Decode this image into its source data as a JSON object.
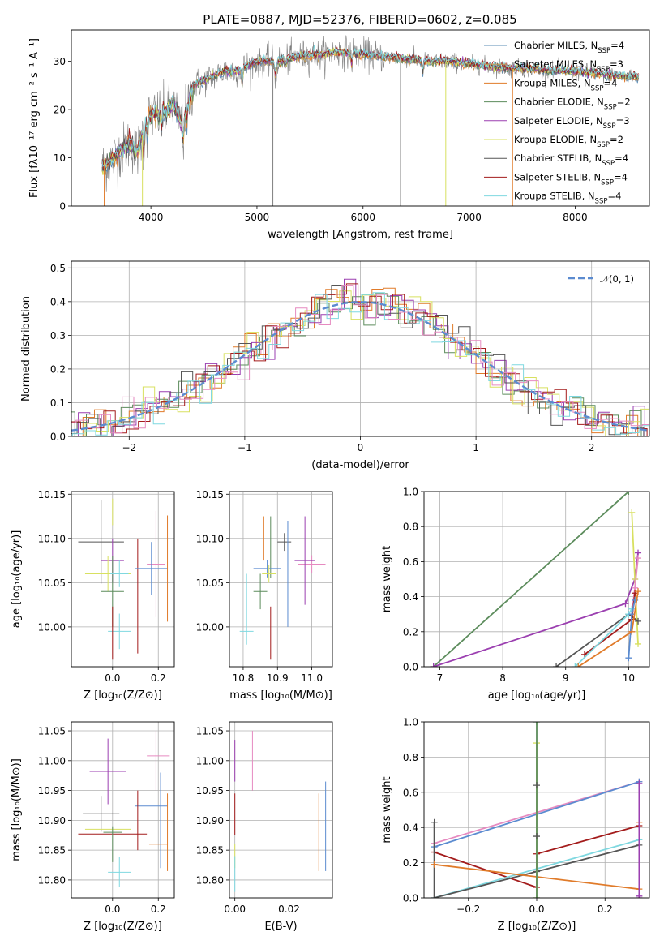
{
  "figure": {
    "title": "PLATE=0887, MJD=52376, FIBERID=0602, z=0.085"
  },
  "chart_data": [
    {
      "id": "spectrum",
      "type": "line",
      "xlabel": "wavelength [Angstrom, rest frame]",
      "ylabel": "Flux [fλ10⁻¹⁷ erg cm⁻² s⁻¹ A⁻¹]",
      "xlim": [
        3250,
        8700
      ],
      "ylim": [
        0,
        36.5
      ],
      "xticks": [
        4000,
        5000,
        6000,
        7000,
        8000
      ],
      "yticks": [
        0,
        10,
        20,
        30
      ],
      "grid": false,
      "legend_position": "top-right",
      "continuum": {
        "x": [
          3540,
          3600,
          3700,
          3800,
          3870,
          3950,
          4000,
          4100,
          4200,
          4300,
          4400,
          4500,
          4600,
          4700,
          4800,
          4900,
          5000,
          5200,
          5400,
          5600,
          5800,
          6000,
          6200,
          6400,
          6600,
          6800,
          7000,
          7200,
          7400,
          7600,
          7800,
          8000,
          8200,
          8400,
          8700
        ],
        "y": [
          8,
          9,
          11,
          13,
          11,
          17,
          19,
          19,
          21,
          17,
          25,
          26,
          27,
          28,
          28,
          29,
          30,
          30,
          31,
          31.5,
          32,
          31.5,
          31,
          30.5,
          30,
          30,
          29.5,
          29,
          28.5,
          28.5,
          28,
          28,
          27.5,
          27,
          26.5
        ]
      },
      "series": [
        {
          "name": "Chabrier MILES, N",
          "sub": "SSP",
          "suffix": "=4",
          "color": "#5b8db5"
        },
        {
          "name": "Salpeter MILES, N",
          "sub": "SSP",
          "suffix": "=3",
          "color": "#c69a55"
        },
        {
          "name": "Kroupa MILES, N",
          "sub": "SSP",
          "suffix": "=4",
          "color": "#e07b2a"
        },
        {
          "name": "Chabrier ELODIE, N",
          "sub": "SSP",
          "suffix": "=2",
          "color": "#5c8c5c"
        },
        {
          "name": "Salpeter ELODIE, N",
          "sub": "SSP",
          "suffix": "=3",
          "color": "#9b3fb0"
        },
        {
          "name": "Kroupa ELODIE, N",
          "sub": "SSP",
          "suffix": "=2",
          "color": "#d8e060"
        },
        {
          "name": "Chabrier STELIB, N",
          "sub": "SSP",
          "suffix": "=4",
          "color": "#555555"
        },
        {
          "name": "Salpeter STELIB, N",
          "sub": "SSP",
          "suffix": "=4",
          "color": "#a31b1b"
        },
        {
          "name": "Kroupa STELIB, N",
          "sub": "SSP",
          "suffix": "=4",
          "color": "#7fd8e0"
        }
      ],
      "observed_color": "#808080",
      "spikes": [
        {
          "x": 3560,
          "color": "#e07b2a"
        },
        {
          "x": 3920,
          "color": "#d8e060"
        },
        {
          "x": 5150,
          "color": "#808080"
        },
        {
          "x": 6350,
          "color": "#bbbbbb"
        },
        {
          "x": 6780,
          "color": "#d8e060"
        },
        {
          "x": 7410,
          "color": "#e07b2a"
        }
      ]
    },
    {
      "id": "residuals",
      "type": "histogram",
      "xlabel": "(data-model)/error",
      "ylabel": "Normed distribution",
      "xlim": [
        -2.5,
        2.5
      ],
      "ylim": [
        0,
        0.52
      ],
      "xticks": [
        -2,
        -1,
        0,
        1,
        2
      ],
      "yticks": [
        0.0,
        0.1,
        0.2,
        0.3,
        0.4,
        0.5
      ],
      "grid": true,
      "legend_position": "top-right",
      "normal_label": "𝒩(0, 1)",
      "normal_color": "#5b8bd0",
      "series": [
        {
          "color": "#e07b2a",
          "bin_width": 0.1,
          "offset": 0.0
        },
        {
          "color": "#5c8c5c",
          "bin_width": 0.1,
          "offset": 0.03
        },
        {
          "color": "#9b3fb0",
          "bin_width": 0.1,
          "offset": 0.06
        },
        {
          "color": "#d8e060",
          "bin_width": 0.1,
          "offset": 0.02
        },
        {
          "color": "#555555",
          "bin_width": 0.1,
          "offset": 0.05
        },
        {
          "color": "#a31b1b",
          "bin_width": 0.1,
          "offset": 0.08
        },
        {
          "color": "#7fd8e0",
          "bin_width": 0.1,
          "offset": 0.01
        },
        {
          "color": "#e68ac0",
          "bin_width": 0.1,
          "offset": 0.04
        }
      ]
    },
    {
      "id": "age_vs_z",
      "type": "errorbar",
      "xlabel": "Z [log₁₀(Z/Z⊙)]",
      "ylabel": "age  [log₁₀(age/yr)]",
      "xlim": [
        -0.18,
        0.27
      ],
      "ylim": [
        9.955,
        10.153
      ],
      "xticks": [
        0.0,
        0.2
      ],
      "yticks": [
        10.0,
        10.05,
        10.1,
        10.15
      ],
      "grid": true,
      "points": [
        {
          "x": -0.05,
          "xerr": 0.1,
          "y": 10.096,
          "yerr": 0.047,
          "color": "#555555"
        },
        {
          "x": 0.0,
          "xerr": 0.05,
          "y": 10.075,
          "yerr": 0.025,
          "color": "#9b3fb0"
        },
        {
          "x": -0.02,
          "xerr": 0.1,
          "y": 10.06,
          "yerr": 0.02,
          "color": "#d8e060"
        },
        {
          "x": 0.0,
          "xerr": 0.05,
          "y": 10.04,
          "yerr": 0.04,
          "color": "#5c8c5c"
        },
        {
          "x": 0.03,
          "xerr": 0.04,
          "y": 10.06,
          "yerr": 0.015,
          "color": "#7fd8e0"
        },
        {
          "x": 0.03,
          "xerr": 0.05,
          "y": 9.995,
          "yerr": 0.02,
          "color": "#7fd8e0"
        },
        {
          "x": 0.0,
          "xerr": 0.15,
          "y": 9.993,
          "yerr": 0.03,
          "color": "#a31b1b"
        },
        {
          "x": 0.11,
          "xerr": 0.0,
          "y": 10.035,
          "yerr": 0.065,
          "color": "#a31b1b"
        },
        {
          "x": 0.19,
          "xerr": 0.04,
          "y": 10.071,
          "yerr": 0.06,
          "color": "#e68ac0"
        },
        {
          "x": 0.17,
          "xerr": 0.07,
          "y": 10.066,
          "yerr": 0.03,
          "color": "#5b8bd0"
        },
        {
          "x": 0.24,
          "xerr": 0.0,
          "y": 10.066,
          "yerr": 0.06,
          "color": "#e07b2a"
        },
        {
          "x": 0.0,
          "xerr": 0.0,
          "y": 10.13,
          "yerr": 0.015,
          "color": "#d8e060"
        }
      ]
    },
    {
      "id": "age_vs_mass",
      "type": "errorbar",
      "xlabel": "mass [log₁₀(M/M⊙)]",
      "ylabel": "",
      "xlim": [
        10.76,
        11.06
      ],
      "ylim": [
        9.955,
        10.153
      ],
      "xticks": [
        10.8,
        10.9,
        11.0
      ],
      "yticks": [
        10.0,
        10.05,
        10.1,
        10.15
      ],
      "grid": true,
      "points": [
        {
          "x": 10.91,
          "xerr": 0.0,
          "y": 10.12,
          "yerr": 0.025,
          "color": "#555555"
        },
        {
          "x": 10.92,
          "xerr": 0.02,
          "y": 10.096,
          "yerr": 0.01,
          "color": "#555555"
        },
        {
          "x": 10.86,
          "xerr": 0.0,
          "y": 10.1,
          "yerr": 0.025,
          "color": "#e07b2a"
        },
        {
          "x": 10.88,
          "xerr": 0.0,
          "y": 10.09,
          "yerr": 0.035,
          "color": "#5c8c5c"
        },
        {
          "x": 10.87,
          "xerr": 0.04,
          "y": 10.066,
          "yerr": 0.01,
          "color": "#5b8bd0"
        },
        {
          "x": 10.875,
          "xerr": 0.02,
          "y": 10.06,
          "yerr": 0.01,
          "color": "#d8e060"
        },
        {
          "x": 10.85,
          "xerr": 0.02,
          "y": 10.04,
          "yerr": 0.02,
          "color": "#5c8c5c"
        },
        {
          "x": 10.81,
          "xerr": 0.0,
          "y": 10.02,
          "yerr": 0.04,
          "color": "#7fd8e0"
        },
        {
          "x": 10.81,
          "xerr": 0.02,
          "y": 9.995,
          "yerr": 0.0,
          "color": "#7fd8e0"
        },
        {
          "x": 10.88,
          "xerr": 0.02,
          "y": 9.993,
          "yerr": 0.03,
          "color": "#a31b1b"
        },
        {
          "x": 10.93,
          "xerr": 0.0,
          "y": 10.06,
          "yerr": 0.06,
          "color": "#5b8bd0"
        },
        {
          "x": 11.0,
          "xerr": 0.04,
          "y": 10.071,
          "yerr": 0.01,
          "color": "#e68ac0"
        },
        {
          "x": 10.98,
          "xerr": 0.03,
          "y": 10.075,
          "yerr": 0.05,
          "color": "#9b3fb0"
        }
      ]
    },
    {
      "id": "weight_vs_age",
      "type": "line",
      "xlabel": "age  [log₁₀(age/yr)]",
      "ylabel": "mass weight",
      "xlim": [
        6.75,
        10.33
      ],
      "ylim": [
        0,
        1
      ],
      "xticks": [
        7,
        8,
        9,
        10
      ],
      "yticks": [
        0.0,
        0.2,
        0.4,
        0.6,
        0.8,
        1.0
      ],
      "grid": true,
      "series": [
        {
          "color": "#5c8c5c",
          "x": [
            6.9,
            10.0
          ],
          "y": [
            0.0,
            1.0
          ]
        },
        {
          "color": "#9b3fb0",
          "x": [
            6.9,
            9.95,
            10.1,
            10.15
          ],
          "y": [
            0.0,
            0.36,
            0.5,
            0.65
          ]
        },
        {
          "color": "#d8e060",
          "x": [
            10.05,
            10.1,
            10.15
          ],
          "y": [
            0.88,
            0.5,
            0.13
          ]
        },
        {
          "color": "#e68ac0",
          "x": [
            10.05,
            10.1,
            10.15
          ],
          "y": [
            0.3,
            0.45,
            0.62
          ]
        },
        {
          "color": "#555555",
          "x": [
            8.85,
            10.0,
            10.15
          ],
          "y": [
            0.0,
            0.3,
            0.26
          ]
        },
        {
          "color": "#a31b1b",
          "x": [
            9.3,
            10.05,
            10.1
          ],
          "y": [
            0.07,
            0.27,
            0.42
          ]
        },
        {
          "color": "#7fd8e0",
          "x": [
            9.15,
            10.0,
            10.05
          ],
          "y": [
            0.0,
            0.3,
            0.33
          ]
        },
        {
          "color": "#5b8bd0",
          "x": [
            10.0,
            10.05,
            10.1
          ],
          "y": [
            0.05,
            0.3,
            0.38
          ]
        },
        {
          "color": "#e07b2a",
          "x": [
            9.2,
            10.05,
            10.15
          ],
          "y": [
            0.0,
            0.2,
            0.43
          ]
        }
      ]
    },
    {
      "id": "mass_vs_z",
      "type": "errorbar",
      "xlabel": "Z [log₁₀(Z/Z⊙)]",
      "ylabel": "mass [log₁₀(M/M⊙)]",
      "xlim": [
        -0.18,
        0.27
      ],
      "ylim": [
        10.77,
        11.065
      ],
      "xticks": [
        0.0,
        0.2
      ],
      "yticks": [
        10.8,
        10.85,
        10.9,
        10.95,
        11.0,
        11.05
      ],
      "grid": true,
      "points": [
        {
          "x": -0.02,
          "xerr": 0.08,
          "y": 10.982,
          "yerr": 0.055,
          "color": "#9b3fb0"
        },
        {
          "x": 0.19,
          "xerr": 0.0,
          "y": 11.0,
          "yerr": 0.05,
          "color": "#e68ac0"
        },
        {
          "x": 0.2,
          "xerr": 0.05,
          "y": 11.008,
          "yerr": 0.0,
          "color": "#e68ac0"
        },
        {
          "x": 0.17,
          "xerr": 0.07,
          "y": 10.924,
          "yerr": 0.0,
          "color": "#5b8bd0"
        },
        {
          "x": 0.21,
          "xerr": 0.0,
          "y": 10.9,
          "yerr": 0.08,
          "color": "#5b8bd0"
        },
        {
          "x": -0.05,
          "xerr": 0.08,
          "y": 10.911,
          "yerr": 0.03,
          "color": "#555555"
        },
        {
          "x": -0.02,
          "xerr": 0.1,
          "y": 10.885,
          "yerr": 0.0,
          "color": "#d8e060"
        },
        {
          "x": 0.0,
          "xerr": 0.04,
          "y": 10.88,
          "yerr": 0.0,
          "color": "#5c8c5c"
        },
        {
          "x": 0.0,
          "xerr": 0.15,
          "y": 10.877,
          "yerr": 0.0,
          "color": "#a31b1b"
        },
        {
          "x": 0.11,
          "xerr": 0.0,
          "y": 10.9,
          "yerr": 0.05,
          "color": "#a31b1b"
        },
        {
          "x": 0.2,
          "xerr": 0.04,
          "y": 10.86,
          "yerr": 0.0,
          "color": "#e07b2a"
        },
        {
          "x": 0.24,
          "xerr": 0.0,
          "y": 10.88,
          "yerr": 0.065,
          "color": "#e07b2a"
        },
        {
          "x": 0.0,
          "xerr": 0.0,
          "y": 10.86,
          "yerr": 0.03,
          "color": "#5c8c5c"
        },
        {
          "x": 0.03,
          "xerr": 0.05,
          "y": 10.813,
          "yerr": 0.025,
          "color": "#7fd8e0"
        }
      ]
    },
    {
      "id": "mass_vs_ebv",
      "type": "errorbar",
      "xlabel": "E(B-V)",
      "ylabel": "",
      "xlim": [
        -0.002,
        0.036
      ],
      "ylim": [
        10.77,
        11.065
      ],
      "xticks": [
        0.0,
        0.02
      ],
      "yticks": [
        10.8,
        10.85,
        10.9,
        10.95,
        11.0,
        11.05
      ],
      "grid": true,
      "points": [
        {
          "x": 0.0,
          "xerr": 0.0,
          "y": 11.0,
          "yerr": 0.035,
          "color": "#9b3fb0"
        },
        {
          "x": 0.0065,
          "xerr": 0.0,
          "y": 11.0,
          "yerr": 0.05,
          "color": "#e68ac0"
        },
        {
          "x": 0.0,
          "xerr": 0.0,
          "y": 10.91,
          "yerr": 0.035,
          "color": "#a31b1b"
        },
        {
          "x": 0.0,
          "xerr": 0.0,
          "y": 10.84,
          "yerr": 0.02,
          "color": "#d8e060"
        },
        {
          "x": 0.0,
          "xerr": 0.0,
          "y": 10.81,
          "yerr": 0.03,
          "color": "#7fd8e0"
        },
        {
          "x": 0.031,
          "xerr": 0.0,
          "y": 10.88,
          "yerr": 0.065,
          "color": "#e07b2a"
        },
        {
          "x": 0.0335,
          "xerr": 0.0,
          "y": 10.89,
          "yerr": 0.075,
          "color": "#5b8bd0"
        }
      ]
    },
    {
      "id": "weight_vs_z",
      "type": "line",
      "xlabel": "Z [log₁₀(Z/Z⊙)]",
      "ylabel": "mass weight",
      "xlim": [
        -0.33,
        0.33
      ],
      "ylim": [
        0,
        1
      ],
      "xticks": [
        -0.2,
        0.0,
        0.2
      ],
      "yticks": [
        0.0,
        0.2,
        0.4,
        0.6,
        0.8,
        1.0
      ],
      "grid": true,
      "series": [
        {
          "color": "#e68ac0",
          "x": [
            -0.3,
            0.3
          ],
          "y": [
            0.31,
            0.66
          ]
        },
        {
          "color": "#5b8bd0",
          "x": [
            -0.3,
            0.3
          ],
          "y": [
            0.29,
            0.66
          ]
        },
        {
          "color": "#a31b1b",
          "x": [
            -0.3,
            0.0,
            0.0,
            0.3
          ],
          "y": [
            0.26,
            0.06,
            0.25,
            0.41
          ]
        },
        {
          "color": "#7fd8e0",
          "x": [
            -0.3,
            0.3
          ],
          "y": [
            0.0,
            0.33
          ]
        },
        {
          "color": "#555555",
          "x": [
            -0.3,
            -0.3,
            0.0,
            0.3
          ],
          "y": [
            0.43,
            0.0,
            0.15,
            0.3
          ]
        },
        {
          "color": "#e07b2a",
          "x": [
            -0.3,
            0.3,
            0.3
          ],
          "y": [
            0.19,
            0.05,
            0.43
          ]
        },
        {
          "color": "#d8e060",
          "x": [
            0.0,
            0.0
          ],
          "y": [
            0.0,
            0.88
          ]
        },
        {
          "color": "#5c8c5c",
          "x": [
            0.0,
            0.0
          ],
          "y": [
            0.0,
            1.0
          ]
        },
        {
          "color": "#9b3fb0",
          "x": [
            0.3,
            0.3
          ],
          "y": [
            0.0,
            0.65
          ]
        }
      ],
      "extra_markers": [
        {
          "x": 0.0,
          "y": 0.64,
          "color": "#555555"
        },
        {
          "x": 0.0,
          "y": 0.35,
          "color": "#555555"
        },
        {
          "x": 0.3,
          "y": 0.01,
          "color": "#9b3fb0"
        }
      ]
    }
  ]
}
